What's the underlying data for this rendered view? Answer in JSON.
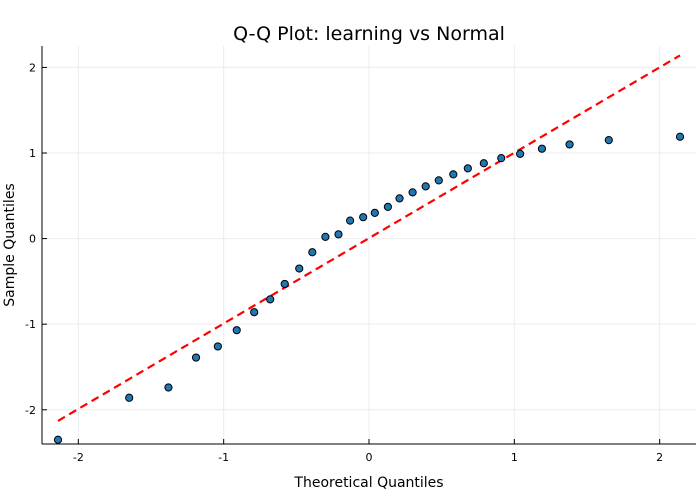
{
  "chart_data": {
    "type": "scatter",
    "title": "Q-Q Plot: learning vs Normal",
    "xlabel": "Theoretical Quantiles",
    "ylabel": "Sample Quantiles",
    "xlim": [
      -2.25,
      2.25
    ],
    "ylim": [
      -2.4,
      2.25
    ],
    "xticks": [
      -2,
      -1,
      0,
      1,
      2
    ],
    "yticks": [
      -2,
      -1,
      0,
      1,
      2
    ],
    "grid": true,
    "legend": "none",
    "point_color": "#1f77b4",
    "point_edge_color": "#000000",
    "reference_line": {
      "style": "dashed",
      "color": "#ff0000",
      "x": [
        -2.14,
        2.14
      ],
      "y": [
        -2.13,
        2.14
      ]
    },
    "points": [
      {
        "x": -2.14,
        "y": -2.35
      },
      {
        "x": -1.65,
        "y": -1.86
      },
      {
        "x": -1.38,
        "y": -1.74
      },
      {
        "x": -1.19,
        "y": -1.39
      },
      {
        "x": -1.04,
        "y": -1.26
      },
      {
        "x": -0.91,
        "y": -1.07
      },
      {
        "x": -0.79,
        "y": -0.86
      },
      {
        "x": -0.68,
        "y": -0.71
      },
      {
        "x": -0.58,
        "y": -0.53
      },
      {
        "x": -0.48,
        "y": -0.35
      },
      {
        "x": -0.39,
        "y": -0.16
      },
      {
        "x": -0.3,
        "y": 0.02
      },
      {
        "x": -0.21,
        "y": 0.05
      },
      {
        "x": -0.13,
        "y": 0.21
      },
      {
        "x": -0.04,
        "y": 0.25
      },
      {
        "x": 0.04,
        "y": 0.3
      },
      {
        "x": 0.13,
        "y": 0.37
      },
      {
        "x": 0.21,
        "y": 0.47
      },
      {
        "x": 0.3,
        "y": 0.54
      },
      {
        "x": 0.39,
        "y": 0.61
      },
      {
        "x": 0.48,
        "y": 0.68
      },
      {
        "x": 0.58,
        "y": 0.75
      },
      {
        "x": 0.68,
        "y": 0.82
      },
      {
        "x": 0.79,
        "y": 0.88
      },
      {
        "x": 0.91,
        "y": 0.94
      },
      {
        "x": 1.04,
        "y": 0.99
      },
      {
        "x": 1.19,
        "y": 1.05
      },
      {
        "x": 1.38,
        "y": 1.1
      },
      {
        "x": 1.65,
        "y": 1.15
      },
      {
        "x": 2.14,
        "y": 1.19
      }
    ]
  }
}
